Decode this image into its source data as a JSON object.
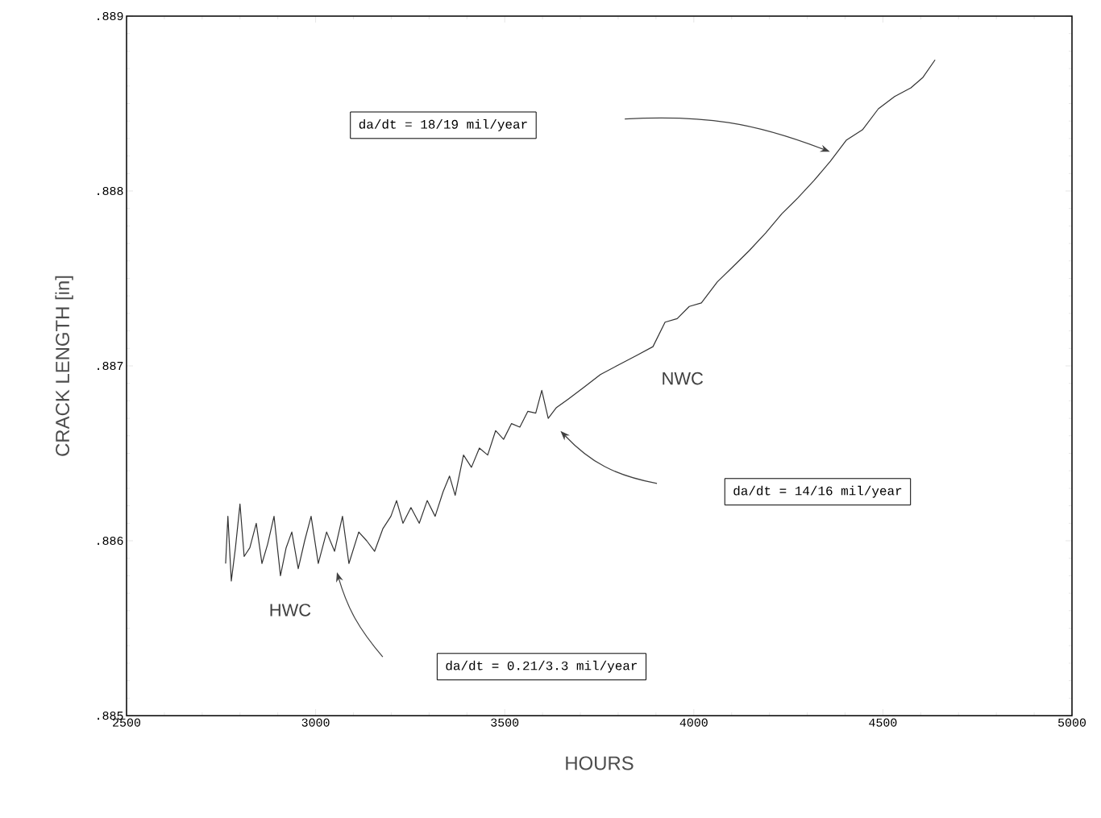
{
  "chart_data": {
    "type": "line",
    "xlabel": "HOURS",
    "ylabel": "CRACK LENGTH  [in]",
    "xlim": [
      2500,
      5000
    ],
    "ylim": [
      0.885,
      0.889
    ],
    "xticks": [
      2500,
      3000,
      3500,
      4000,
      4500,
      5000
    ],
    "yticks": [
      {
        "value": 0.885,
        "label": ".885"
      },
      {
        "value": 0.886,
        "label": ".886"
      },
      {
        "value": 0.887,
        "label": ".887"
      },
      {
        "value": 0.888,
        "label": ".888"
      },
      {
        "value": 0.889,
        "label": ".889"
      }
    ],
    "grid": false,
    "marker": "none",
    "line_style": "solid",
    "series": [
      {
        "color": "#333333",
        "x": [
          2762,
          2768,
          2777,
          2788,
          2800,
          2811,
          2826,
          2843,
          2858,
          2873,
          2890,
          2907,
          2922,
          2937,
          2954,
          2971,
          2988,
          3007,
          3029,
          3050,
          3071,
          3088,
          3114,
          3135,
          3156,
          3178,
          3199,
          3214,
          3231,
          3252,
          3274,
          3295,
          3316,
          3337,
          3354,
          3369,
          3391,
          3412,
          3433,
          3455,
          3476,
          3497,
          3518,
          3540,
          3561,
          3582,
          3598,
          3615,
          3636,
          3668,
          3711,
          3753,
          3796,
          3849,
          3892,
          3924,
          3956,
          3988,
          4020,
          4062,
          4105,
          4147,
          4190,
          4233,
          4275,
          4318,
          4361,
          4403,
          4446,
          4488,
          4531,
          4574,
          4606,
          4638
        ],
        "values": [
          0.88587,
          0.88614,
          0.88577,
          0.88596,
          0.88621,
          0.88591,
          0.88596,
          0.8861,
          0.88587,
          0.88598,
          0.88614,
          0.8858,
          0.88596,
          0.88605,
          0.88584,
          0.886,
          0.88614,
          0.88587,
          0.88605,
          0.88594,
          0.88614,
          0.88587,
          0.88605,
          0.886,
          0.88594,
          0.88607,
          0.88614,
          0.88623,
          0.8861,
          0.88619,
          0.8861,
          0.88623,
          0.88614,
          0.88628,
          0.88637,
          0.88626,
          0.88649,
          0.88642,
          0.88653,
          0.88649,
          0.88663,
          0.88658,
          0.88667,
          0.88665,
          0.88674,
          0.88673,
          0.88686,
          0.8867,
          0.88676,
          0.88681,
          0.88688,
          0.88695,
          0.887,
          0.88706,
          0.88711,
          0.88725,
          0.88727,
          0.88734,
          0.88736,
          0.88748,
          0.88757,
          0.88766,
          0.88776,
          0.88787,
          0.88796,
          0.88806,
          0.88817,
          0.88829,
          0.88835,
          0.88847,
          0.88854,
          0.88859,
          0.88865,
          0.88875
        ]
      }
    ],
    "annotations": [
      "da/dt = 18/19 mil/year",
      "da/dt = 14/16 mil/year",
      "da/dt = 0.21/3.3 mil/year",
      "HWC",
      "NWC"
    ]
  }
}
